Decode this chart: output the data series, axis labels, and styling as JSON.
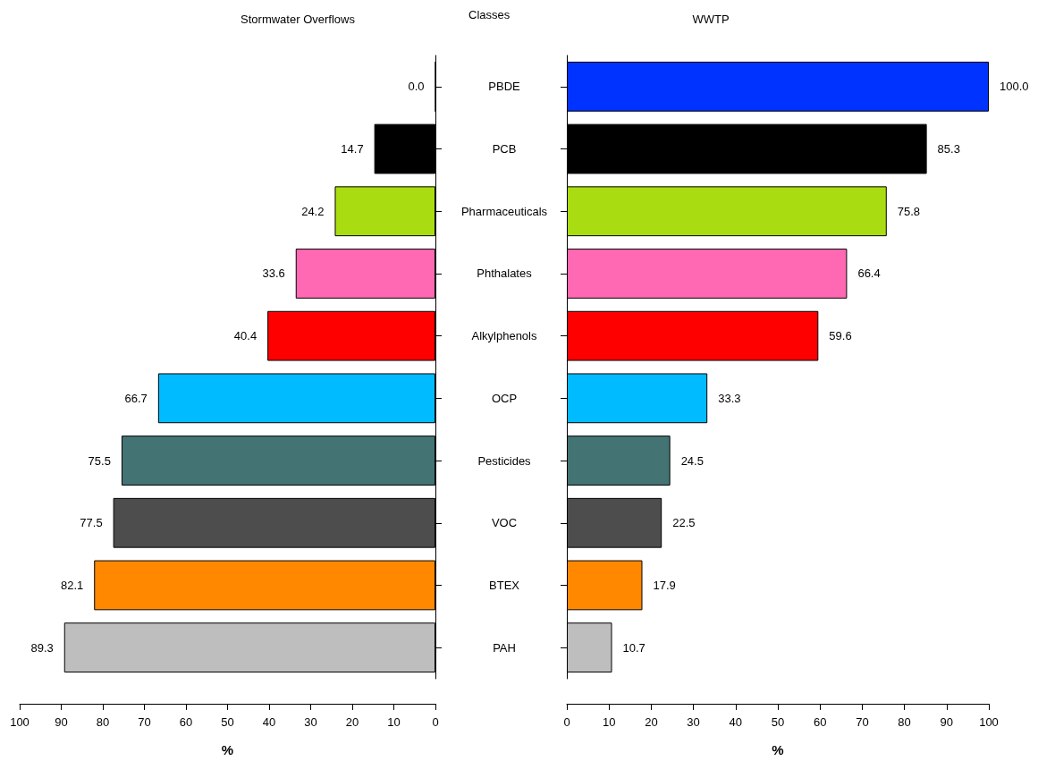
{
  "chart_data": [
    {
      "type": "bar",
      "orientation": "horizontal",
      "title": "Stormwater Overflows",
      "xlabel": "%",
      "categories": [
        null,
        null,
        null,
        null,
        null,
        null,
        null,
        null,
        null,
        null
      ],
      "values": [
        0.0,
        14.7,
        24.2,
        33.6,
        40.4,
        66.7,
        75.5,
        77.5,
        82.1,
        89.3
      ],
      "value_labels": [
        "0.0",
        "14.7",
        "24.2",
        "33.6",
        "40.4",
        "66.7",
        "75.5",
        "77.5",
        "82.1",
        "89.3"
      ],
      "colors": [
        "#0033ff",
        "#000000",
        "#aadd11",
        "#ff69b4",
        "#ff0000",
        "#00bbff",
        "#437373",
        "#4d4d4d",
        "#ff8800",
        "#bebebe"
      ],
      "xlim": [
        100,
        0
      ],
      "xticks": [
        0,
        10,
        20,
        30,
        40,
        50,
        60,
        70,
        80,
        90,
        100
      ]
    },
    {
      "type": "bar",
      "orientation": "horizontal",
      "title": "WWTP",
      "xlabel": "%",
      "ylabel": "Classes",
      "categories": [
        "PBDE",
        "PCB",
        "Pharmaceuticals",
        "Phthalates",
        "Alkylphenols",
        "OCP",
        "Pesticides",
        "VOC",
        "BTEX",
        "PAH"
      ],
      "values": [
        100.0,
        85.3,
        75.8,
        66.4,
        59.6,
        33.3,
        24.5,
        22.5,
        17.9,
        10.7
      ],
      "value_labels": [
        "100.0",
        "85.3",
        "75.8",
        "66.4",
        "59.6",
        "33.3",
        "24.5",
        "22.5",
        "17.9",
        "10.7"
      ],
      "colors": [
        "#0033ff",
        "#000000",
        "#aadd11",
        "#ff69b4",
        "#ff0000",
        "#00bbff",
        "#437373",
        "#4d4d4d",
        "#ff8800",
        "#bebebe"
      ],
      "xlim": [
        0,
        100
      ],
      "xticks": [
        0,
        10,
        20,
        30,
        40,
        50,
        60,
        70,
        80,
        90,
        100
      ]
    }
  ]
}
